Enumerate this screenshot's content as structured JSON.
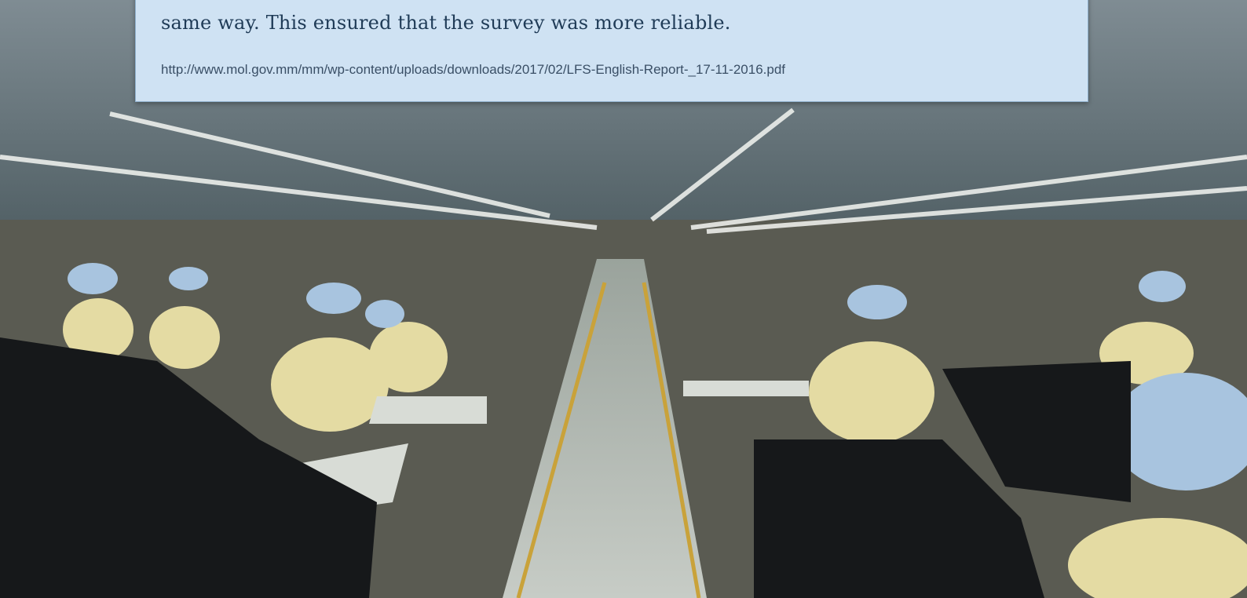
{
  "text_box": {
    "paragraph_end": "same way. This ensured that the survey was more reliable.",
    "source_url": "http://www.mol.gov.mm/mm/wp-content/uploads/downloads/2017/02/LFS-English-Report-_17-11-2016.pdf"
  }
}
